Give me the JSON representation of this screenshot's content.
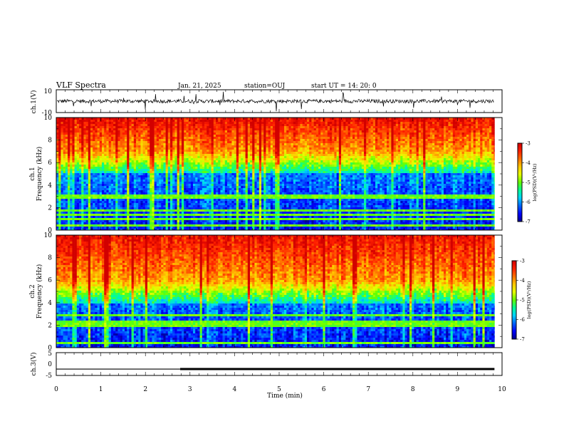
{
  "header": {
    "title": "VLF Spectra",
    "date": "Jan. 21, 2025",
    "station": "station=OUJ",
    "start_ut": "start UT =  14: 20: 0"
  },
  "colors": {
    "colormap": [
      "#00008c",
      "#0000ff",
      "#0064ff",
      "#00d2ff",
      "#00ff96",
      "#64ff00",
      "#e6ff00",
      "#ffc800",
      "#ff6e00",
      "#ff1e00",
      "#d20000"
    ],
    "trace": "#000000"
  },
  "chart_data": [
    {
      "name": "ch1",
      "type": "line",
      "ylabel": "ch.1(V)",
      "ylim": [
        -10,
        10
      ],
      "y_ticks": [
        "10",
        "-10"
      ],
      "x_range": [
        0,
        10
      ],
      "description_of_signal": "noisy waveform around 0 V with frequent spikes",
      "baseline": 0
    },
    {
      "name": "ch1-spectrogram",
      "type": "heatmap",
      "ylabel_line1": "ch.1",
      "ylabel_line2": "Frequency (kHz)",
      "ylim": [
        0,
        10
      ],
      "y_ticks": [
        "10",
        "8",
        "6",
        "4",
        "2",
        "0"
      ],
      "x_range": [
        0,
        9.83
      ],
      "colorbar": {
        "label": "log(PSD)(V²/Hz)",
        "range": [
          -7,
          -3
        ],
        "ticks": [
          "-3",
          "-4",
          "-5",
          "-6",
          "-7"
        ]
      },
      "bands_kHz": {
        "low_end": 5,
        "high_start": 7
      }
    },
    {
      "name": "ch2-spectrogram",
      "type": "heatmap",
      "ylabel_line1": "ch.2",
      "ylabel_line2": "Frequency (kHz)",
      "ylim": [
        0,
        10
      ],
      "y_ticks": [
        "10",
        "8",
        "6",
        "4",
        "2",
        "0"
      ],
      "x_range": [
        0,
        9.83
      ],
      "colorbar": {
        "label": "log(PSD)(V²/Hz)",
        "range": [
          -7,
          -3
        ],
        "ticks": [
          "-3",
          "-4",
          "-5",
          "-6",
          "-7"
        ]
      },
      "bands_kHz": {
        "low_end": 4,
        "high_start": 6
      }
    },
    {
      "name": "ch3",
      "type": "line",
      "ylabel": "ch.3(V)",
      "ylim": [
        -5,
        5
      ],
      "y_ticks": [
        "5",
        "0",
        "-5"
      ],
      "segments": [
        {
          "x": [
            0,
            2.78
          ],
          "y": -2.2
        },
        {
          "x": [
            2.78,
            9.83
          ],
          "y": -2.2,
          "bold": true
        }
      ]
    }
  ],
  "xaxis": {
    "label": "Time (min)",
    "ticks": [
      "0",
      "1",
      "2",
      "3",
      "4",
      "5",
      "6",
      "7",
      "8",
      "9",
      "10"
    ],
    "range": [
      0,
      10
    ]
  }
}
